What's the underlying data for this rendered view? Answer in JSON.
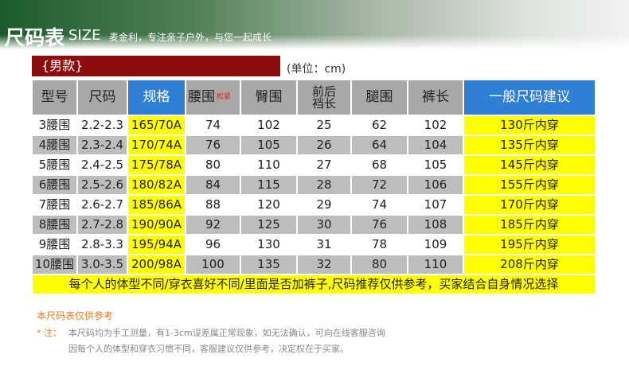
{
  "header": {
    "title": "尺码表",
    "title_en": "SIZE",
    "slogan": "麦金利，专注亲子户外，与您一起成长"
  },
  "section": {
    "label": "{男款}",
    "unit": "(单位：cm)"
  },
  "table": {
    "columns": [
      "型号",
      "尺码",
      "规格",
      "腰围",
      "臀围",
      "前后裆长",
      "腿围",
      "裤长",
      "一般尺码建议"
    ],
    "waist_note": "松紧",
    "rows": [
      [
        "3腰围",
        "2.2-2.3",
        "165/70A",
        74,
        102,
        25,
        62,
        102,
        "130斤内穿"
      ],
      [
        "4腰围",
        "2.3-2.4",
        "170/74A",
        76,
        105,
        26,
        64,
        104,
        "135斤内穿"
      ],
      [
        "5腰围",
        "2.4-2.5",
        "175/78A",
        80,
        110,
        27,
        68,
        105,
        "145斤内穿"
      ],
      [
        "6腰围",
        "2.5-2.6",
        "180/82A",
        84,
        115,
        28,
        72,
        106,
        "155斤内穿"
      ],
      [
        "7腰围",
        "2.6-2.7",
        "185/86A",
        88,
        120,
        29,
        74,
        107,
        "170斤内穿"
      ],
      [
        "8腰围",
        "2.7-2.8",
        "190/90A",
        92,
        125,
        30,
        76,
        108,
        "185斤内穿"
      ],
      [
        "9腰围",
        "2.8-3.3",
        "195/94A",
        96,
        130,
        31,
        78,
        109,
        "195斤内穿"
      ],
      [
        "10腰围",
        "3.0-3.5",
        "200/98A",
        100,
        135,
        32,
        80,
        110,
        "208斤内穿"
      ]
    ],
    "note": "每个人的体型不同/穿衣喜好不同/里面是否加裤子,尺码推荐仅供参考，买家结合自身情况选择"
  },
  "footer": {
    "heading": "本尺码表仅供参考",
    "mark": "* 注：",
    "lines": [
      "本尺码均为手工测量，有1-3cm误差属正常现象，如无法确认，可向在线客服咨询",
      "因每个人的体型和穿衣习惯不同，客服建议仅供参考，决定权在于买家。"
    ]
  }
}
